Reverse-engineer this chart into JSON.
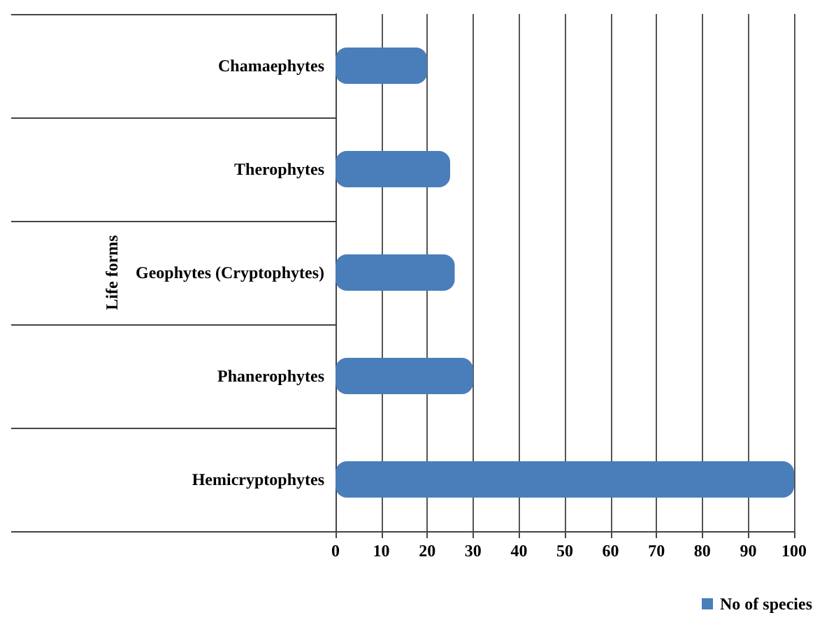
{
  "chart_data": {
    "type": "bar",
    "orientation": "horizontal",
    "ylabel": "Life forms",
    "categories": [
      "Chamaephytes",
      "Therophytes",
      "Geophytes (Cryptophytes)",
      "Phanerophytes",
      "Hemicryptophytes"
    ],
    "series": [
      {
        "name": "No of species",
        "color": "#4a7ebb",
        "values": [
          20,
          25,
          26,
          30,
          100
        ]
      }
    ],
    "xlim": [
      0,
      100
    ],
    "xticks": [
      0,
      10,
      20,
      30,
      40,
      50,
      60,
      70,
      80,
      90,
      100
    ],
    "grid": "x",
    "legend": "bottom right"
  }
}
